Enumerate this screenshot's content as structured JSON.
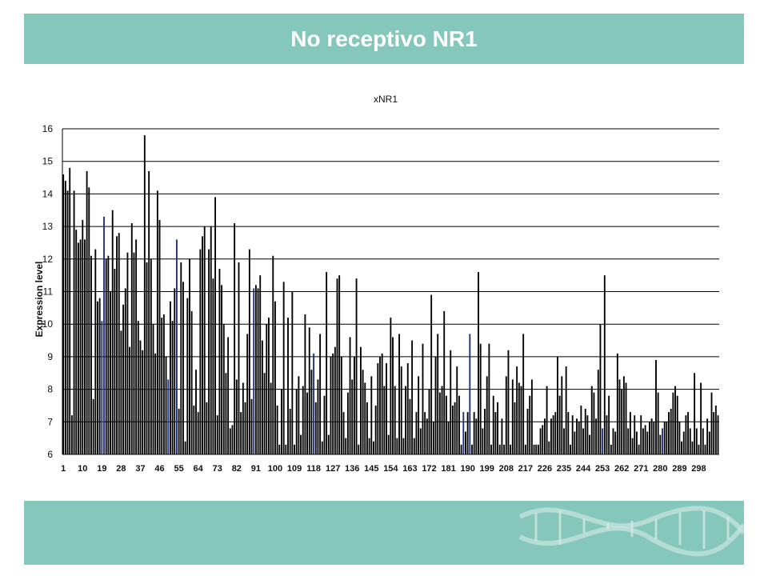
{
  "slide": {
    "title": "No receptivo NR1"
  },
  "colors": {
    "banner": "#86c7bb",
    "bar": "#000000",
    "bar_highlight": "#1f2f7a",
    "gridline": "#000000"
  },
  "icons": {
    "decoration": "dna-helix-icon"
  },
  "chart_data": {
    "type": "bar",
    "title": "xNR1",
    "xlabel": "",
    "ylabel": "Expression level",
    "ylim": [
      6,
      16
    ],
    "yticks": [
      6,
      7,
      8,
      9,
      10,
      11,
      12,
      13,
      14,
      15,
      16
    ],
    "grid": true,
    "legend": "none",
    "x_start": 1,
    "x_tick_labels": [
      "1",
      "10",
      "19",
      "28",
      "37",
      "46",
      "55",
      "64",
      "73",
      "82",
      "91",
      "100",
      "109",
      "118",
      "127",
      "136",
      "145",
      "154",
      "163",
      "172",
      "181",
      "190",
      "199",
      "208",
      "217",
      "226",
      "235",
      "244",
      "253",
      "262",
      "271",
      "280",
      "289",
      "298"
    ],
    "highlight_indices": [
      19,
      20,
      50,
      54,
      90,
      118,
      188,
      191,
      253,
      281
    ],
    "values": [
      14.6,
      14.4,
      14.1,
      14.8,
      7.2,
      14.1,
      12.9,
      12.5,
      12.6,
      13.2,
      12.6,
      14.7,
      14.2,
      12.1,
      7.7,
      12.3,
      10.7,
      10.8,
      10.1,
      13.3,
      12.0,
      12.1,
      11.0,
      13.5,
      11.7,
      12.7,
      12.8,
      9.8,
      10.6,
      11.1,
      12.2,
      9.3,
      13.1,
      12.2,
      12.6,
      10.1,
      9.5,
      9.2,
      15.8,
      11.9,
      14.7,
      12.0,
      10.0,
      9.1,
      14.1,
      13.2,
      10.2,
      10.3,
      9.0,
      8.3,
      10.7,
      10.1,
      11.1,
      12.6,
      7.4,
      11.9,
      11.3,
      6.4,
      10.8,
      12.0,
      10.4,
      7.5,
      8.6,
      7.3,
      12.3,
      12.7,
      13.0,
      7.6,
      12.3,
      13.0,
      11.4,
      13.9,
      7.2,
      11.7,
      11.2,
      10.0,
      8.5,
      9.6,
      6.8,
      6.9,
      13.1,
      8.3,
      11.9,
      7.3,
      8.2,
      7.6,
      9.7,
      12.3,
      7.7,
      11.1,
      11.2,
      11.1,
      11.5,
      9.5,
      8.5,
      10.0,
      10.2,
      8.2,
      12.1,
      10.7,
      7.5,
      6.3,
      8.0,
      11.3,
      6.3,
      10.2,
      7.4,
      11.0,
      6.3,
      8.0,
      8.4,
      6.6,
      8.1,
      10.3,
      7.9,
      9.9,
      8.6,
      9.1,
      7.6,
      8.3,
      9.7,
      6.4,
      7.8,
      11.6,
      6.6,
      9.0,
      9.1,
      9.3,
      11.4,
      11.5,
      9.0,
      7.3,
      6.5,
      7.9,
      9.6,
      8.3,
      9.0,
      11.4,
      6.3,
      9.3,
      8.6,
      8.2,
      7.6,
      6.5,
      8.4,
      6.4,
      7.5,
      8.8,
      9.0,
      9.1,
      8.1,
      8.8,
      6.6,
      10.2,
      9.6,
      8.1,
      6.5,
      9.7,
      8.7,
      6.5,
      8.1,
      8.8,
      7.7,
      9.5,
      6.5,
      7.3,
      8.4,
      6.8,
      9.4,
      7.3,
      7.1,
      8.0,
      10.9,
      7.0,
      9.0,
      9.7,
      7.9,
      8.1,
      10.4,
      7.8,
      7.0,
      9.2,
      7.5,
      7.6,
      8.7,
      7.8,
      6.3,
      7.3,
      6.7,
      7.3,
      9.7,
      6.3,
      7.3,
      7.1,
      11.6,
      9.4,
      6.8,
      7.4,
      8.4,
      9.4,
      6.3,
      7.8,
      7.3,
      7.6,
      6.3,
      7.1,
      6.3,
      8.4,
      9.2,
      6.3,
      8.3,
      7.6,
      8.7,
      8.2,
      8.1,
      9.7,
      6.3,
      7.4,
      7.8,
      8.3,
      6.3,
      6.3,
      6.3,
      6.8,
      6.9,
      7.1,
      8.1,
      6.4,
      7.1,
      7.2,
      7.3,
      9.0,
      7.8,
      8.4,
      6.8,
      8.7,
      7.3,
      6.3,
      7.2,
      6.7,
      7.1,
      7.0,
      7.5,
      6.8,
      7.4,
      7.2,
      6.6,
      8.1,
      7.9,
      7.1,
      8.6,
      10.0,
      6.8,
      11.5,
      7.2,
      7.8,
      6.3,
      6.8,
      6.7,
      9.1,
      8.3,
      8.0,
      8.4,
      8.2,
      6.8,
      7.3,
      6.5,
      7.2,
      6.7,
      6.3,
      7.2,
      6.8,
      6.9,
      6.7,
      7.0,
      7.1,
      7.0,
      8.9,
      7.9,
      6.6,
      6.8,
      7.0,
      7.0,
      7.3,
      7.4,
      7.9,
      8.1,
      7.8,
      7.0,
      6.4,
      6.7,
      7.2,
      7.3,
      6.8,
      6.4,
      8.5,
      6.8,
      6.3,
      8.2,
      6.8,
      6.3,
      7.1,
      6.7,
      7.9,
      7.3,
      7.5,
      7.2
    ]
  }
}
